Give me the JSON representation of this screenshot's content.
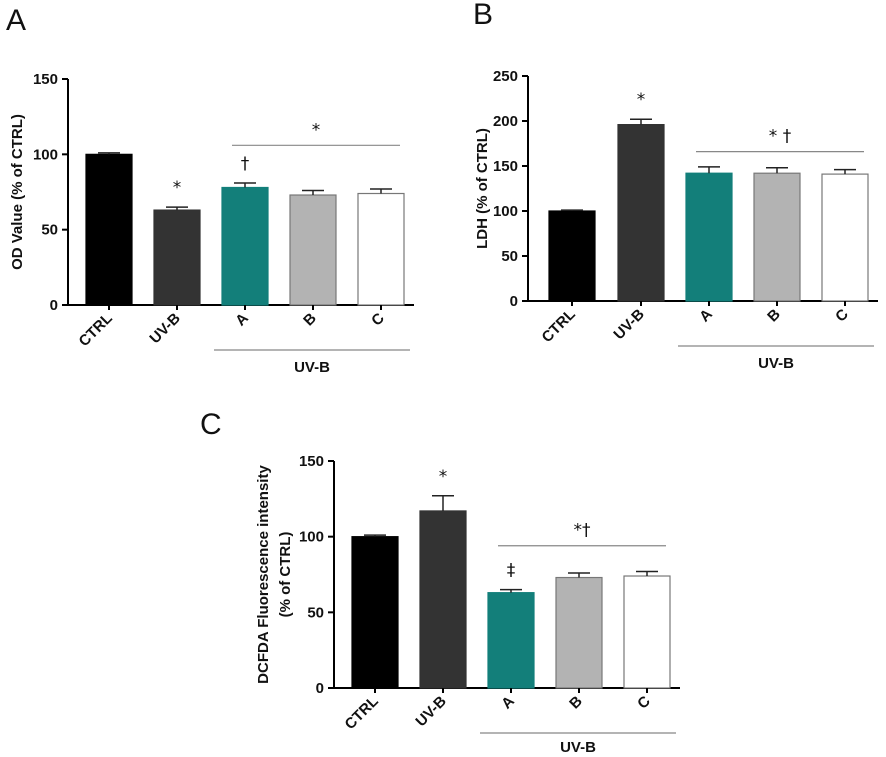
{
  "chart_data": [
    {
      "panel": "A",
      "type": "bar",
      "ylabel": "OD Value (% of CTRL)",
      "ylim": [
        0,
        150
      ],
      "yticks": [
        0,
        50,
        100,
        150
      ],
      "categories": [
        "CTRL",
        "UV-B",
        "A",
        "B",
        "C"
      ],
      "values": [
        100,
        63,
        78,
        73,
        74
      ],
      "errors": [
        1,
        2,
        3,
        3,
        3
      ],
      "colors": [
        "#000000",
        "#333333",
        "#137f7a",
        "#b3b3b3",
        "#ffffff"
      ],
      "bar_markers": [
        "",
        "*",
        "†",
        "",
        ""
      ],
      "bracket": {
        "from": 2,
        "to": 4,
        "value": 106,
        "label": "*"
      },
      "group_label": {
        "from": 2,
        "to": 4,
        "text": "UV-B"
      }
    },
    {
      "panel": "B",
      "type": "bar",
      "ylabel": "LDH (% of CTRL)",
      "ylim": [
        0,
        250
      ],
      "yticks": [
        0,
        50,
        100,
        150,
        200,
        250
      ],
      "categories": [
        "CTRL",
        "UV-B",
        "A",
        "B",
        "C"
      ],
      "values": [
        100,
        196,
        142,
        142,
        141
      ],
      "errors": [
        1,
        6,
        7,
        6,
        5
      ],
      "colors": [
        "#000000",
        "#333333",
        "#137f7a",
        "#b3b3b3",
        "#ffffff"
      ],
      "bar_markers": [
        "",
        "*",
        "",
        "",
        ""
      ],
      "bracket": {
        "from": 2,
        "to": 4,
        "value": 166,
        "label": "*  †"
      },
      "group_label": {
        "from": 2,
        "to": 4,
        "text": "UV-B"
      }
    },
    {
      "panel": "C",
      "type": "bar",
      "ylabel": "DCFDA Fluorescence intensity",
      "ylabel2": "(% of CTRL)",
      "ylim": [
        0,
        150
      ],
      "yticks": [
        0,
        50,
        100,
        150
      ],
      "categories": [
        "CTRL",
        "UV-B",
        "A",
        "B",
        "C"
      ],
      "values": [
        100,
        117,
        63,
        73,
        74
      ],
      "errors": [
        1,
        10,
        2,
        3,
        3
      ],
      "colors": [
        "#000000",
        "#333333",
        "#137f7a",
        "#b3b3b3",
        "#ffffff"
      ],
      "bar_markers": [
        "",
        "*",
        "‡",
        "",
        ""
      ],
      "bracket": {
        "from": 2,
        "to": 4,
        "value": 94,
        "label": "*†"
      },
      "group_label": {
        "from": 2,
        "to": 4,
        "text": "UV-B"
      }
    }
  ]
}
